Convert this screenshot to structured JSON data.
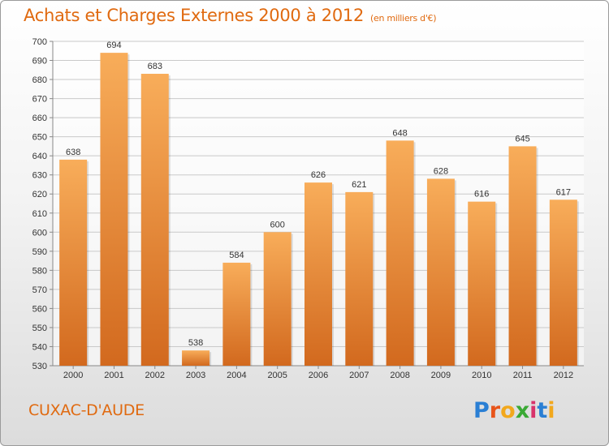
{
  "title": "Achats et Charges Externes 2000 à 2012",
  "subtitle": "(en milliers d'€)",
  "city": "CUXAC-D'AUDE",
  "logo": {
    "letters": [
      "P",
      "r",
      "o",
      "x",
      "i",
      "t",
      "i"
    ],
    "colors": [
      "#2a7fd4",
      "#e8541a",
      "#f2a81d",
      "#3aa935",
      "#d8336b",
      "#2a7fd4",
      "#f2a81d"
    ]
  },
  "colors": {
    "bar_light": "#f8ad5a",
    "bar_dark": "#d2691e",
    "accent": "#e06a10",
    "grid": "#c9c9c9"
  },
  "chart_data": {
    "type": "bar",
    "title": "Achats et Charges Externes 2000 à 2012",
    "subtitle": "(en milliers d'€)",
    "categories": [
      "2000",
      "2001",
      "2002",
      "2003",
      "2004",
      "2005",
      "2006",
      "2007",
      "2008",
      "2009",
      "2010",
      "2011",
      "2012"
    ],
    "values": [
      638,
      694,
      683,
      538,
      584,
      600,
      626,
      621,
      648,
      628,
      616,
      645,
      617
    ],
    "ylim": [
      530,
      700
    ],
    "ytick_step": 10,
    "grid": true,
    "xlabel": "",
    "ylabel": ""
  }
}
